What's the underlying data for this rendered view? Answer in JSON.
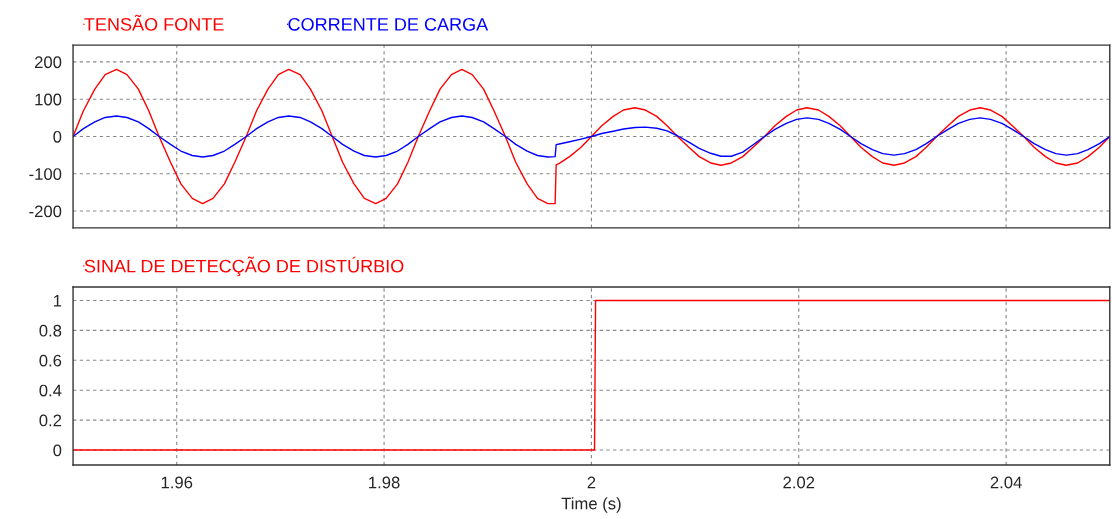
{
  "chart_data": [
    {
      "type": "line",
      "legend": "top left",
      "grid": true,
      "tick_labels": "y",
      "xlim": [
        1.95,
        2.05
      ],
      "xticks": [
        1.96,
        1.98,
        2,
        2.02,
        2.04
      ],
      "ylim": [
        -245,
        245
      ],
      "yticks": [
        -200,
        -100,
        0,
        100,
        200
      ],
      "x": [
        1.95,
        1.951,
        1.9521,
        1.9531,
        1.9542,
        1.9552,
        1.9563,
        1.9573,
        1.9583,
        1.9594,
        1.9604,
        1.9615,
        1.9625,
        1.9635,
        1.9646,
        1.9656,
        1.9667,
        1.9677,
        1.9688,
        1.9698,
        1.9708,
        1.9719,
        1.9729,
        1.974,
        1.975,
        1.976,
        1.9771,
        1.9781,
        1.9792,
        1.9802,
        1.9813,
        1.9823,
        1.9833,
        1.9844,
        1.9854,
        1.9865,
        1.9875,
        1.9885,
        1.9896,
        1.9906,
        1.9917,
        1.9927,
        1.9938,
        1.9948,
        1.9958,
        1.9965,
        1.9966,
        1.9969,
        1.9979,
        1.999,
        2.0,
        2.001,
        2.0021,
        2.0031,
        2.0042,
        2.0052,
        2.0063,
        2.0073,
        2.0083,
        2.0094,
        2.0104,
        2.0115,
        2.0125,
        2.0135,
        2.0146,
        2.0156,
        2.0167,
        2.0177,
        2.0188,
        2.0198,
        2.0208,
        2.0219,
        2.0229,
        2.024,
        2.025,
        2.026,
        2.0271,
        2.0281,
        2.0292,
        2.0302,
        2.0313,
        2.0323,
        2.0333,
        2.0344,
        2.0354,
        2.0365,
        2.0375,
        2.0385,
        2.0396,
        2.0406,
        2.0417,
        2.0427,
        2.0438,
        2.0448,
        2.0458,
        2.0469,
        2.0479,
        2.049,
        2.05
      ],
      "series": [
        {
          "name": "TENSÃO FONTE",
          "color": "#ff0000",
          "values": [
            0,
            69,
            127,
            166,
            180,
            166,
            127,
            69,
            0,
            -69,
            -127,
            -166,
            -180,
            -166,
            -127,
            -69,
            0,
            69,
            127,
            166,
            180,
            166,
            127,
            69,
            0,
            -69,
            -127,
            -166,
            -180,
            -166,
            -127,
            -69,
            0,
            69,
            127,
            166,
            180,
            166,
            127,
            69,
            0,
            -69,
            -127,
            -166,
            -180,
            -180,
            -76,
            -72,
            -54,
            -29,
            0,
            29,
            54,
            71,
            77,
            71,
            54,
            29,
            0,
            -29,
            -54,
            -71,
            -77,
            -71,
            -54,
            -29,
            0,
            29,
            54,
            71,
            77,
            71,
            54,
            29,
            0,
            -29,
            -54,
            -71,
            -77,
            -71,
            -54,
            -29,
            0,
            29,
            54,
            71,
            77,
            71,
            54,
            29,
            0,
            -29,
            -54,
            -71,
            -77,
            -71,
            -54,
            -29,
            0
          ]
        },
        {
          "name": "CORRENTE DE CARGA",
          "color": "#0000ff",
          "values": [
            0,
            21,
            39,
            51,
            55,
            51,
            39,
            21,
            0,
            -21,
            -39,
            -51,
            -55,
            -51,
            -39,
            -21,
            0,
            21,
            39,
            51,
            55,
            51,
            39,
            21,
            0,
            -21,
            -39,
            -51,
            -55,
            -51,
            -39,
            -21,
            0,
            21,
            39,
            51,
            55,
            51,
            39,
            21,
            0,
            -21,
            -39,
            -51,
            -55,
            -54,
            -22,
            -20,
            -14,
            -7,
            0,
            8,
            14,
            20,
            24,
            25,
            22,
            15,
            2,
            -15,
            -32,
            -45,
            -53,
            -53,
            -42,
            -22,
            0,
            19,
            35,
            46,
            50,
            46,
            35,
            19,
            0,
            -19,
            -35,
            -46,
            -50,
            -46,
            -35,
            -19,
            0,
            19,
            35,
            46,
            50,
            46,
            35,
            19,
            0,
            -19,
            -35,
            -46,
            -50,
            -46,
            -35,
            -19,
            0
          ]
        }
      ]
    },
    {
      "type": "line",
      "legend": "top left",
      "grid": true,
      "xlabel": "Time (s)",
      "xlim": [
        1.95,
        2.05
      ],
      "xticks": [
        1.96,
        1.98,
        2,
        2.02,
        2.04
      ],
      "ylim": [
        -0.1,
        1.09
      ],
      "yticks": [
        0,
        0.2,
        0.4,
        0.6,
        0.8,
        1
      ],
      "x": [
        1.95,
        2.0003,
        2.0004,
        2.05
      ],
      "series": [
        {
          "name": "SINAL DE DETECÇÃO DE DISTÚRBIO",
          "color": "#ff0000",
          "values": [
            0,
            0,
            1,
            1
          ]
        }
      ]
    }
  ]
}
